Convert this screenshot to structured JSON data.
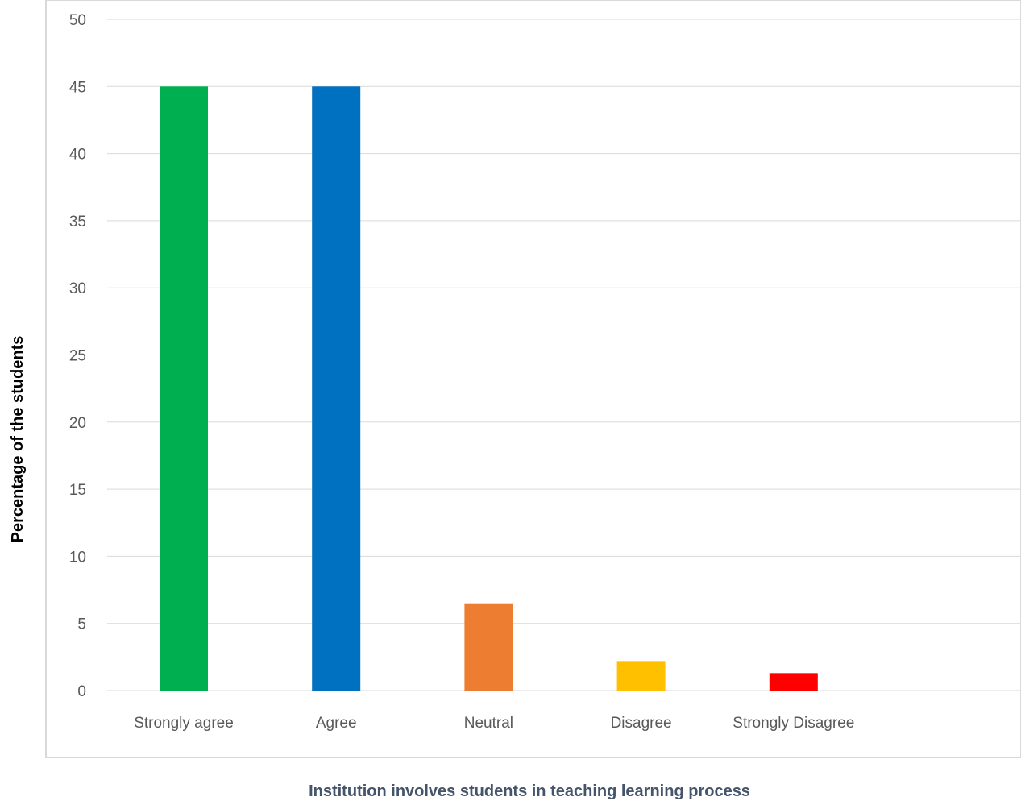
{
  "chart_data": {
    "type": "bar",
    "categories": [
      "Strongly agree",
      "Agree",
      "Neutral",
      "Disagree",
      "Strongly Disagree"
    ],
    "values": [
      45,
      45,
      6.5,
      2.2,
      1.3
    ],
    "colors": [
      "#00b050",
      "#0070c0",
      "#ed7d31",
      "#ffc000",
      "#ff0000"
    ],
    "xlabel": "Institution involves students in teaching learning process",
    "ylabel": "Percentage of the students",
    "ylim": [
      0,
      50
    ],
    "yticks": [
      "0",
      "5",
      "10",
      "15",
      "20",
      "25",
      "30",
      "35",
      "40",
      "45",
      "50"
    ],
    "grid": true,
    "legend": "none"
  }
}
